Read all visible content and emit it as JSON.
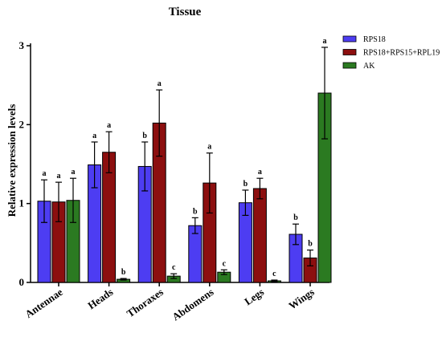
{
  "chart_data": {
    "type": "bar",
    "title": "Tissue",
    "xlabel": "",
    "ylabel": "Relative expression levels",
    "ylim": [
      0,
      3
    ],
    "yticks": [
      0,
      1,
      2,
      3
    ],
    "categories": [
      "Antennae",
      "Heads",
      "Thoraxes",
      "Abdomens",
      "Legs",
      "Wings"
    ],
    "legend_position": "top-right",
    "series": [
      {
        "name": "RPS18",
        "color": "#4d3df2",
        "values": [
          1.03,
          1.49,
          1.47,
          0.72,
          1.01,
          0.61
        ],
        "errors": [
          0.27,
          0.29,
          0.31,
          0.1,
          0.16,
          0.13
        ],
        "letters": [
          "a",
          "a",
          "b",
          "b",
          "b",
          "b"
        ]
      },
      {
        "name": "RPS18+RPS15+RPL19",
        "color": "#8c0f0f",
        "values": [
          1.02,
          1.65,
          2.02,
          1.26,
          1.19,
          0.31
        ],
        "errors": [
          0.25,
          0.26,
          0.42,
          0.38,
          0.13,
          0.1
        ],
        "letters": [
          "a",
          "a",
          "a",
          "a",
          "a",
          "b"
        ]
      },
      {
        "name": "AK",
        "color": "#2b7a21",
        "values": [
          1.04,
          0.04,
          0.08,
          0.13,
          0.02,
          2.4
        ],
        "errors": [
          0.28,
          0.01,
          0.03,
          0.03,
          0.01,
          0.58
        ],
        "letters": [
          "a",
          "b",
          "c",
          "c",
          "c",
          "a"
        ]
      }
    ]
  }
}
